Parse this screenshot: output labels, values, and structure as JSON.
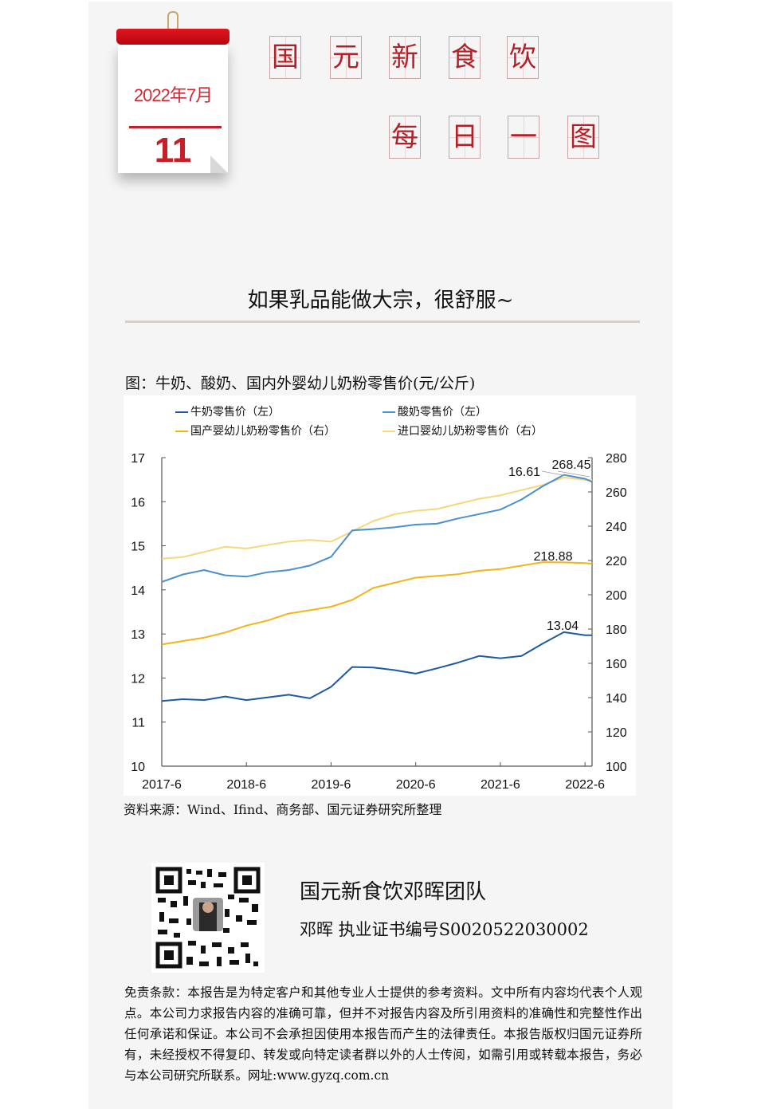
{
  "calendar": {
    "month": "2022年7月",
    "day": "11"
  },
  "header": {
    "line1": [
      "国",
      "元",
      "新",
      "食",
      "饮"
    ],
    "line2": [
      "每",
      "日",
      "一",
      "图"
    ]
  },
  "headline": "如果乳品能做大宗，很舒服~",
  "figure_title": "图：牛奶、酸奶、国内外婴幼儿奶粉零售价(元/公斤)",
  "source": "资料来源：Wind、Ifind、商务部、国元证券研究所整理",
  "team": {
    "name": "国元新食饮邓晖团队",
    "cert": "邓晖  执业证书编号S0020522030002"
  },
  "disclaimer": "免责条款：本报告是为特定客户和其他专业人士提供的参考资料。文中所有内容均代表个人观点。本公司力求报告内容的准确可靠，但并不对报告内容及所引用资料的准确性和完整性作出任何承诺和保证。本公司不会承担因使用本报告而产生的法律责任。本报告版权归国元证券所有，未经授权不得复印、转发或向特定读者群以外的人士传阅，如需引用或转载本报告，务必与本公司研究所联系。网址:www.gyzq.com.cn",
  "colors": {
    "milk": "#1f5aa0",
    "yogurt": "#4a8fd0",
    "domestic_formula": "#f2b418",
    "imported_formula": "#f7d779",
    "brand_red": "#c81e27"
  },
  "chart_data": {
    "type": "line",
    "title": "牛奶、酸奶、国内外婴幼儿奶粉零售价(元/公斤)",
    "xlabel": "",
    "ylabel_left": "元/公斤",
    "ylabel_right": "元/公斤",
    "x": [
      "2017-6",
      "2017-9",
      "2017-12",
      "2018-3",
      "2018-6",
      "2018-9",
      "2018-12",
      "2019-3",
      "2019-6",
      "2019-9",
      "2019-12",
      "2020-3",
      "2020-6",
      "2020-9",
      "2020-12",
      "2021-3",
      "2021-6",
      "2021-9",
      "2021-12",
      "2022-3",
      "2022-6",
      "2022-7"
    ],
    "x_ticks": [
      "2017-6",
      "2018-6",
      "2019-6",
      "2020-6",
      "2021-6",
      "2022-6"
    ],
    "ylim_left": [
      10,
      17
    ],
    "yticks_left": [
      10,
      11,
      12,
      13,
      14,
      15,
      16,
      17
    ],
    "ylim_right": [
      100,
      280
    ],
    "yticks_right": [
      100,
      120,
      140,
      160,
      180,
      200,
      220,
      240,
      260,
      280
    ],
    "legend_position": "top",
    "grid": false,
    "series": [
      {
        "name": "牛奶零售价（左）",
        "axis": "left",
        "color": "#1f5aa0",
        "values": [
          11.48,
          11.52,
          11.5,
          11.58,
          11.5,
          11.56,
          11.62,
          11.54,
          11.8,
          12.25,
          12.24,
          12.18,
          12.1,
          12.22,
          12.35,
          12.5,
          12.45,
          12.5,
          12.78,
          13.04,
          12.97,
          12.97
        ]
      },
      {
        "name": "酸奶零售价（左）",
        "axis": "left",
        "color": "#4a8fd0",
        "values": [
          14.18,
          14.35,
          14.45,
          14.33,
          14.3,
          14.4,
          14.45,
          14.55,
          14.75,
          15.35,
          15.38,
          15.42,
          15.48,
          15.5,
          15.62,
          15.72,
          15.82,
          16.05,
          16.35,
          16.61,
          16.52,
          16.45
        ]
      },
      {
        "name": "国产婴幼儿奶粉零售价（右）",
        "axis": "right",
        "color": "#f2b418",
        "values": [
          171,
          173,
          175,
          178,
          182,
          185,
          189,
          191,
          193,
          197,
          204,
          207,
          210,
          211,
          212,
          214,
          215,
          217,
          219,
          218.88,
          218.5,
          218
        ]
      },
      {
        "name": "进口婴幼儿奶粉零售价（右）",
        "axis": "right",
        "color": "#f7d779",
        "values": [
          221,
          222,
          225,
          228,
          227,
          229,
          231,
          232,
          231,
          237,
          243,
          247,
          249,
          250,
          253,
          256,
          258,
          261,
          264,
          268.45,
          267,
          267
        ]
      }
    ],
    "annotations": [
      {
        "text": "16.61",
        "series": "酸奶零售价（左）"
      },
      {
        "text": "268.45",
        "series": "进口婴幼儿奶粉零售价（右）"
      },
      {
        "text": "218.88",
        "series": "国产婴幼儿奶粉零售价（右）"
      },
      {
        "text": "13.04",
        "series": "牛奶零售价（左）"
      }
    ]
  }
}
